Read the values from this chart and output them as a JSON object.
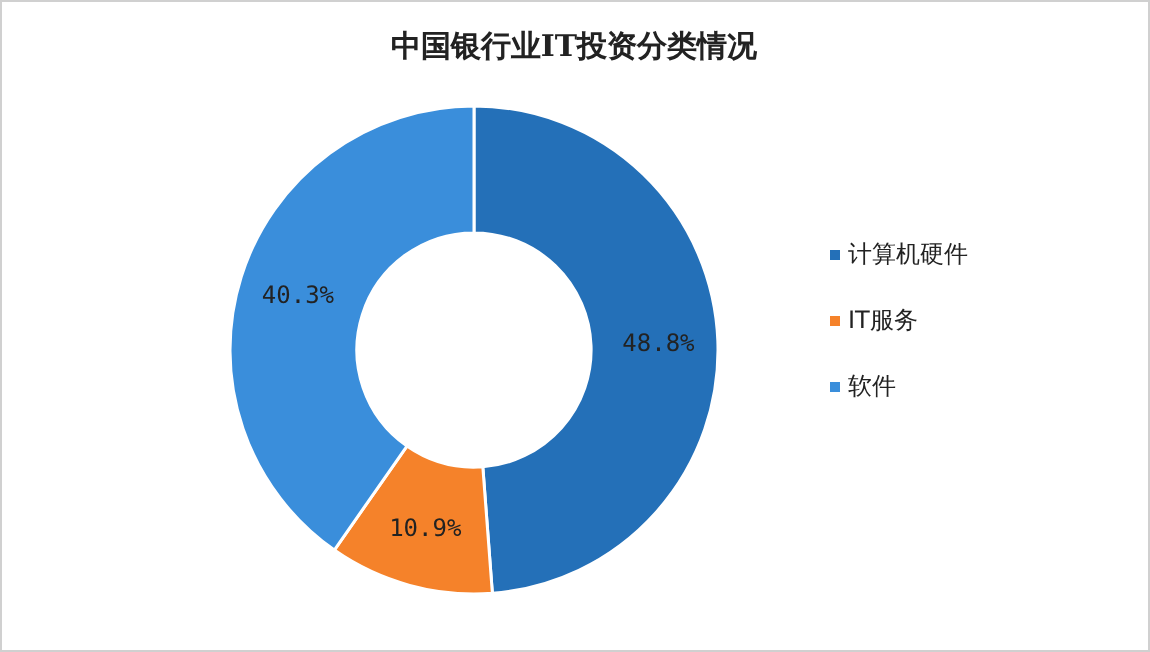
{
  "chart_data": {
    "type": "donut",
    "title": "中国银行业IT投资分类情况",
    "categories": [
      "计算机硬件",
      "IT服务",
      "软件"
    ],
    "values": [
      48.8,
      10.9,
      40.3
    ],
    "colors": [
      "#2470b8",
      "#f5822a",
      "#3a8edb"
    ],
    "value_labels": [
      "48.8%",
      "10.9%",
      "40.3%"
    ],
    "legend": "right"
  }
}
